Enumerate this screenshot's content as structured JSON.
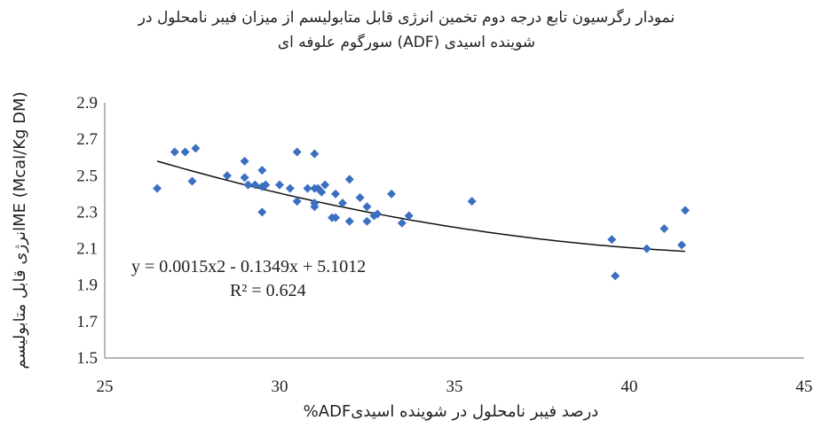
{
  "chart_data": {
    "type": "scatter",
    "title": "نمودار رگرسیون تابع درجه دوم تخمین انرژی قابل متابولیسم از میزان فیبر نامحلول در شوینده اسیدی (ADF) سورگوم علوفه ای",
    "title_lines": [
      "نمودار رگرسیون تابع درجه دوم تخمین انرژی قابل متابولیسم از میزان فیبر نامحلول در",
      "شوینده اسیدی (ADF) سورگوم علوفه ای"
    ],
    "xlabel": "درصد فیبر نامحلول در شوینده اسیدیADF%",
    "ylabel": "ME (Mcal/Kg DM)انرژی قابل متابولیسم",
    "xlim": [
      25,
      45
    ],
    "ylim": [
      1.5,
      2.9
    ],
    "xticks": [
      "25",
      "30",
      "35",
      "40",
      "45"
    ],
    "yticks": [
      "1.5",
      "1.7",
      "1.9",
      "2.1",
      "2.3",
      "2.5",
      "2.7",
      "2.9"
    ],
    "grid": false,
    "marker_color": "#3a6fc1",
    "trend_color": "#111111",
    "points": [
      [
        26.5,
        2.43
      ],
      [
        27.0,
        2.63
      ],
      [
        27.3,
        2.63
      ],
      [
        27.5,
        2.47
      ],
      [
        27.6,
        2.65
      ],
      [
        28.5,
        2.5
      ],
      [
        29.0,
        2.58
      ],
      [
        29.0,
        2.49
      ],
      [
        29.1,
        2.45
      ],
      [
        29.3,
        2.45
      ],
      [
        29.5,
        2.44
      ],
      [
        29.5,
        2.53
      ],
      [
        29.5,
        2.3
      ],
      [
        29.6,
        2.45
      ],
      [
        30.0,
        2.45
      ],
      [
        30.3,
        2.43
      ],
      [
        30.5,
        2.36
      ],
      [
        30.5,
        2.63
      ],
      [
        30.8,
        2.43
      ],
      [
        31.0,
        2.62
      ],
      [
        31.0,
        2.43
      ],
      [
        31.0,
        2.35
      ],
      [
        31.0,
        2.33
      ],
      [
        31.1,
        2.43
      ],
      [
        31.2,
        2.41
      ],
      [
        31.3,
        2.45
      ],
      [
        31.5,
        2.27
      ],
      [
        31.6,
        2.27
      ],
      [
        31.6,
        2.4
      ],
      [
        31.8,
        2.35
      ],
      [
        32.0,
        2.25
      ],
      [
        32.0,
        2.48
      ],
      [
        32.3,
        2.38
      ],
      [
        32.5,
        2.25
      ],
      [
        32.5,
        2.33
      ],
      [
        32.7,
        2.28
      ],
      [
        32.8,
        2.29
      ],
      [
        33.2,
        2.4
      ],
      [
        33.5,
        2.24
      ],
      [
        33.7,
        2.28
      ],
      [
        35.5,
        2.36
      ],
      [
        39.5,
        2.15
      ],
      [
        39.6,
        1.95
      ],
      [
        40.5,
        2.1
      ],
      [
        41.0,
        2.21
      ],
      [
        41.5,
        2.12
      ],
      [
        41.6,
        2.31
      ]
    ],
    "trendline": {
      "type": "polynomial",
      "a": 0.0015,
      "b": -0.1349,
      "c": 5.1012,
      "x_range": [
        26.5,
        41.6
      ]
    },
    "equation": "y = 0.0015x2 - 0.1349x + 5.1012",
    "r_squared": "R² = 0.624"
  }
}
